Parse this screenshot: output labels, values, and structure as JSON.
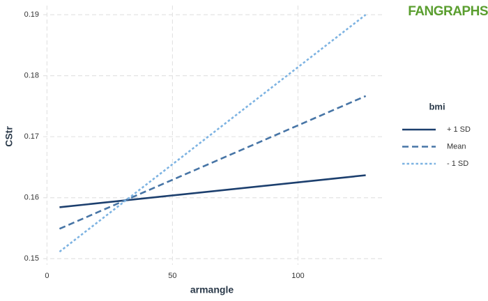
{
  "chart_data": {
    "type": "line",
    "logo": "FANGRAPHS",
    "x_label": "armangle",
    "y_label": "CStr",
    "legend_title": "bmi",
    "legend": "right",
    "x": [
      5,
      127
    ],
    "series": [
      {
        "name": "+ 1 SD",
        "color": "#1c3f6e",
        "linestyle": "solid",
        "values": [
          0.15843,
          0.16368
        ]
      },
      {
        "name": "Mean",
        "color": "#4775a6",
        "linestyle": "dashed",
        "values": [
          0.1549,
          0.17667
        ]
      },
      {
        "name": "- 1 SD",
        "color": "#7db3e2",
        "linestyle": "dotted",
        "values": [
          0.15114,
          0.19
        ]
      }
    ],
    "xlim": [
      -1.5,
      133.5
    ],
    "xticks": [
      0,
      50,
      100
    ],
    "ylim": [
      0.149,
      0.1915
    ],
    "yticks": [
      0.15,
      0.16,
      0.17,
      0.18,
      0.19
    ],
    "grid": true
  }
}
